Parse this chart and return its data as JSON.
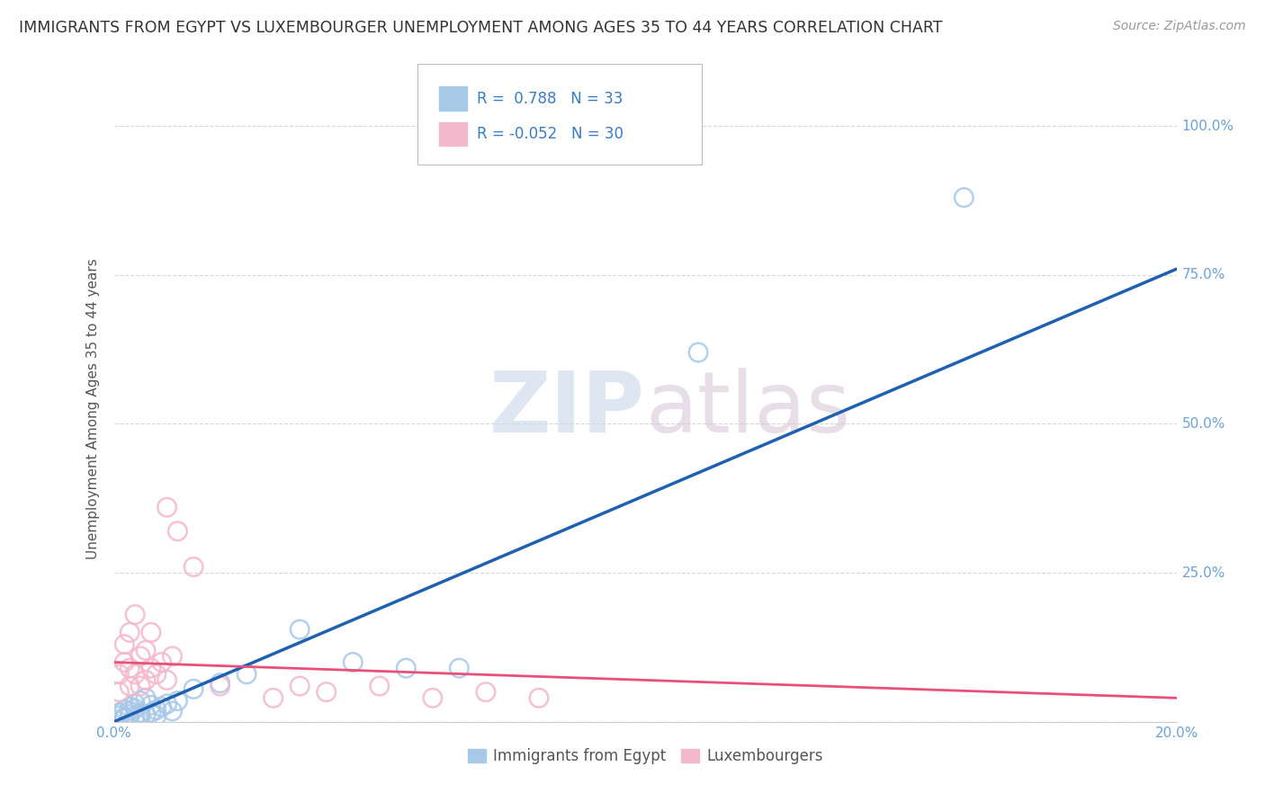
{
  "title": "IMMIGRANTS FROM EGYPT VS LUXEMBOURGER UNEMPLOYMENT AMONG AGES 35 TO 44 YEARS CORRELATION CHART",
  "source": "Source: ZipAtlas.com",
  "ylabel": "Unemployment Among Ages 35 to 44 years",
  "xlim": [
    0.0,
    0.2
  ],
  "ylim": [
    0.0,
    1.05
  ],
  "yticks": [
    0.0,
    0.25,
    0.5,
    0.75,
    1.0
  ],
  "xticks": [
    0.0,
    0.2
  ],
  "blue_R": 0.788,
  "blue_N": 33,
  "pink_R": -0.052,
  "pink_N": 30,
  "blue_color": "#a8c8e8",
  "pink_color": "#f4b8cc",
  "blue_line_color": "#2060b0",
  "pink_line_color": "#e8507a",
  "grid_color": "#d8d8d8",
  "background_color": "#ffffff",
  "blue_scatter_x": [
    0.001,
    0.001,
    0.002,
    0.002,
    0.002,
    0.003,
    0.003,
    0.003,
    0.004,
    0.004,
    0.004,
    0.005,
    0.005,
    0.005,
    0.006,
    0.006,
    0.007,
    0.007,
    0.008,
    0.008,
    0.009,
    0.01,
    0.011,
    0.012,
    0.015,
    0.02,
    0.025,
    0.035,
    0.045,
    0.055,
    0.065,
    0.11,
    0.16
  ],
  "blue_scatter_y": [
    0.01,
    0.015,
    0.005,
    0.02,
    0.008,
    0.012,
    0.018,
    0.025,
    0.01,
    0.022,
    0.03,
    0.008,
    0.015,
    0.035,
    0.012,
    0.04,
    0.015,
    0.028,
    0.01,
    0.02,
    0.025,
    0.03,
    0.018,
    0.035,
    0.055,
    0.065,
    0.08,
    0.155,
    0.1,
    0.09,
    0.09,
    0.62,
    0.88
  ],
  "pink_scatter_x": [
    0.001,
    0.001,
    0.002,
    0.002,
    0.003,
    0.003,
    0.003,
    0.004,
    0.004,
    0.005,
    0.005,
    0.006,
    0.006,
    0.007,
    0.007,
    0.008,
    0.009,
    0.01,
    0.01,
    0.011,
    0.012,
    0.015,
    0.02,
    0.03,
    0.035,
    0.04,
    0.05,
    0.06,
    0.07,
    0.08
  ],
  "pink_scatter_y": [
    0.05,
    0.08,
    0.1,
    0.13,
    0.06,
    0.09,
    0.15,
    0.08,
    0.18,
    0.06,
    0.11,
    0.07,
    0.12,
    0.09,
    0.15,
    0.08,
    0.1,
    0.36,
    0.07,
    0.11,
    0.32,
    0.26,
    0.06,
    0.04,
    0.06,
    0.05,
    0.06,
    0.04,
    0.05,
    0.04
  ],
  "blue_line_x0": 0.0,
  "blue_line_y0": 0.0,
  "blue_line_x1": 0.2,
  "blue_line_y1": 0.76,
  "pink_line_x0": 0.0,
  "pink_line_y0": 0.1,
  "pink_line_x1": 0.2,
  "pink_line_y1": 0.04
}
